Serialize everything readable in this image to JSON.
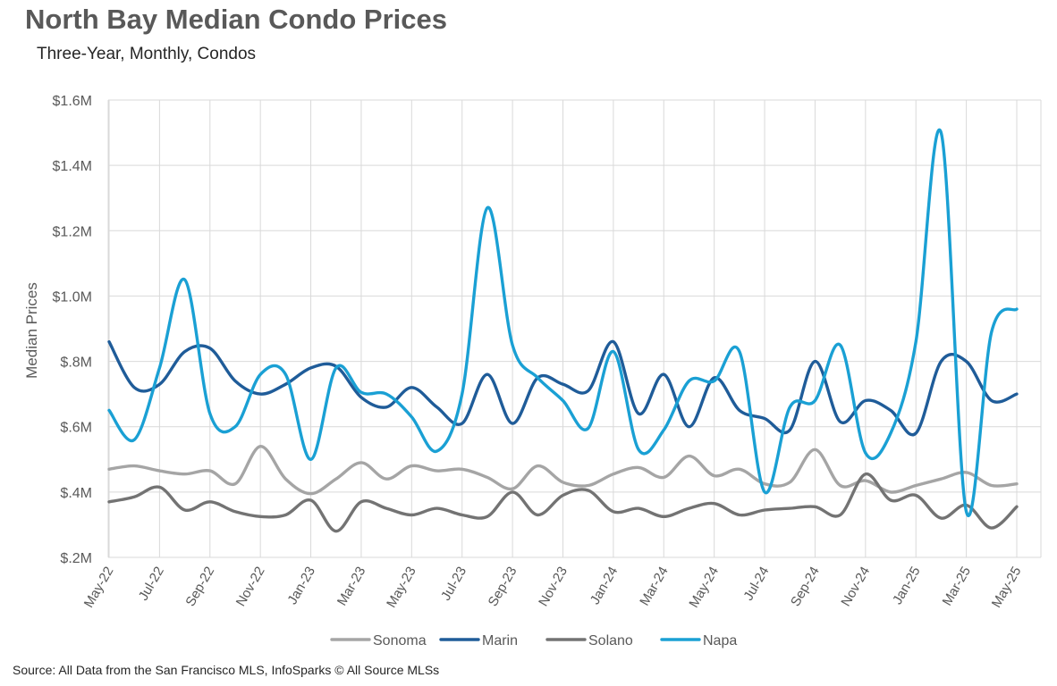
{
  "title": "North Bay Median Condo Prices",
  "subtitle": "Three-Year, Monthly, Condos",
  "source": "Source: All Data from the San Francisco MLS, InfoSparks © All Source MLSs",
  "chart_data": {
    "type": "line",
    "title": "North Bay Median Condo Prices",
    "subtitle": "Three-Year, Monthly, Condos",
    "xlabel": "",
    "ylabel": "Median Prices",
    "ylim": [
      200000,
      1600000
    ],
    "yticks": [
      200000,
      400000,
      600000,
      800000,
      1000000,
      1200000,
      1400000,
      1600000
    ],
    "ytick_labels": [
      "$.2M",
      "$.4M",
      "$.6M",
      "$.8M",
      "$1.0M",
      "$1.2M",
      "$1.4M",
      "$1.6M"
    ],
    "grid": true,
    "legend_position": "bottom",
    "x": [
      "May-22",
      "Jun-22",
      "Jul-22",
      "Aug-22",
      "Sep-22",
      "Oct-22",
      "Nov-22",
      "Dec-22",
      "Jan-23",
      "Feb-23",
      "Mar-23",
      "Apr-23",
      "May-23",
      "Jun-23",
      "Jul-23",
      "Aug-23",
      "Sep-23",
      "Oct-23",
      "Nov-23",
      "Dec-23",
      "Jan-24",
      "Feb-24",
      "Mar-24",
      "Apr-24",
      "May-24",
      "Jun-24",
      "Jul-24",
      "Aug-24",
      "Sep-24",
      "Oct-24",
      "Nov-24",
      "Dec-24",
      "Jan-25",
      "Feb-25",
      "Mar-25",
      "Apr-25",
      "May-25"
    ],
    "x_tick_labels": [
      "May-22",
      "Jul-22",
      "Sep-22",
      "Nov-22",
      "Jan-23",
      "Mar-23",
      "May-23",
      "Jul-23",
      "Sep-23",
      "Nov-23",
      "Jan-24",
      "Mar-24",
      "May-24",
      "Jul-24",
      "Sep-24",
      "Nov-24",
      "Jan-25",
      "Mar-25",
      "May-25"
    ],
    "series": [
      {
        "name": "Sonoma",
        "color": "#A5A5A5",
        "values": [
          470000,
          480000,
          465000,
          455000,
          465000,
          425000,
          540000,
          440000,
          395000,
          440000,
          490000,
          440000,
          480000,
          465000,
          470000,
          445000,
          410000,
          480000,
          430000,
          420000,
          455000,
          475000,
          445000,
          510000,
          450000,
          470000,
          425000,
          430000,
          530000,
          420000,
          435000,
          400000,
          420000,
          440000,
          460000,
          420000,
          425000
        ]
      },
      {
        "name": "Marin",
        "color": "#1F5C99",
        "values": [
          860000,
          720000,
          730000,
          830000,
          840000,
          740000,
          700000,
          730000,
          780000,
          785000,
          690000,
          660000,
          720000,
          660000,
          610000,
          760000,
          610000,
          750000,
          730000,
          710000,
          860000,
          640000,
          760000,
          600000,
          750000,
          650000,
          625000,
          590000,
          800000,
          615000,
          680000,
          650000,
          580000,
          800000,
          800000,
          680000,
          700000
        ]
      },
      {
        "name": "Solano",
        "color": "#737373",
        "values": [
          370000,
          385000,
          415000,
          345000,
          370000,
          340000,
          325000,
          330000,
          375000,
          280000,
          370000,
          350000,
          330000,
          350000,
          330000,
          325000,
          400000,
          330000,
          390000,
          405000,
          340000,
          350000,
          325000,
          350000,
          365000,
          330000,
          345000,
          350000,
          355000,
          330000,
          455000,
          375000,
          390000,
          320000,
          360000,
          290000,
          355000
        ]
      },
      {
        "name": "Napa",
        "color": "#1AA0D4",
        "values": [
          650000,
          560000,
          780000,
          1050000,
          640000,
          600000,
          760000,
          760000,
          500000,
          780000,
          705000,
          700000,
          630000,
          525000,
          700000,
          1270000,
          850000,
          750000,
          680000,
          595000,
          830000,
          530000,
          590000,
          740000,
          740000,
          830000,
          400000,
          660000,
          680000,
          850000,
          520000,
          580000,
          860000,
          1500000,
          340000,
          890000,
          960000
        ]
      }
    ]
  }
}
